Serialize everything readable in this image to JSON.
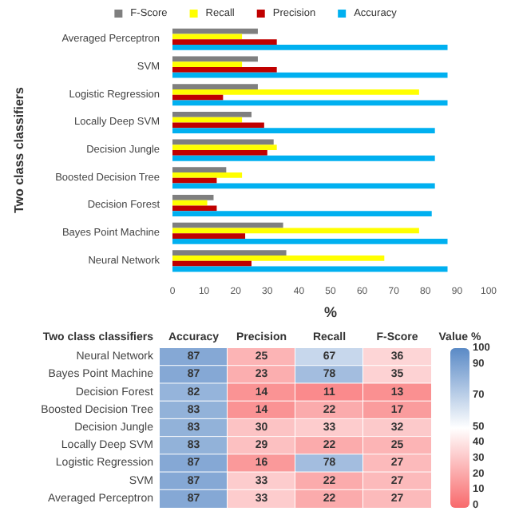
{
  "chart_data": [
    {
      "type": "bar",
      "orientation": "horizontal",
      "xlabel": "%",
      "ylabel": "Two class classifiers",
      "legend": "top",
      "categories": [
        "Averaged Perceptron",
        "SVM",
        "Logistic Regression",
        "Locally Deep SVM",
        "Decision Jungle",
        "Boosted Decision Tree",
        "Decision Forest",
        "Bayes Point Machine",
        "Neural Network"
      ],
      "series": [
        {
          "name": "F-Score",
          "color": "#7f7f7f",
          "values": [
            27,
            27,
            27,
            25,
            32,
            17,
            13,
            35,
            36
          ]
        },
        {
          "name": "Recall",
          "color": "#ffff00",
          "values": [
            22,
            22,
            78,
            22,
            33,
            22,
            11,
            78,
            67
          ]
        },
        {
          "name": "Precision",
          "color": "#c00000",
          "values": [
            33,
            33,
            16,
            29,
            30,
            14,
            14,
            23,
            25
          ]
        },
        {
          "name": "Accuracy",
          "color": "#00b0f0",
          "values": [
            87,
            87,
            87,
            83,
            83,
            83,
            82,
            87,
            87
          ]
        }
      ],
      "xlim": [
        0,
        100
      ],
      "xticks": [
        0,
        10,
        20,
        30,
        40,
        50,
        60,
        70,
        80,
        90,
        100
      ],
      "grid": false
    },
    {
      "type": "heatmap",
      "ylabel": "Two class classifiers",
      "categories": [
        "Accuracy",
        "Precision",
        "Recall",
        "F-Score"
      ],
      "y_categories": [
        "Neural Network",
        "Bayes Point Machine",
        "Decision Forest",
        "Boosted Decision Tree",
        "Decision Jungle",
        "Locally Deep SVM",
        "Logistic Regression",
        "SVM",
        "Averaged Perceptron"
      ],
      "cells": [
        [
          87,
          25,
          67,
          36
        ],
        [
          87,
          23,
          78,
          35
        ],
        [
          82,
          14,
          11,
          13
        ],
        [
          83,
          14,
          22,
          17
        ],
        [
          83,
          30,
          33,
          32
        ],
        [
          83,
          29,
          22,
          25
        ],
        [
          87,
          16,
          78,
          27
        ],
        [
          87,
          33,
          22,
          27
        ],
        [
          87,
          33,
          22,
          27
        ]
      ],
      "data_labels": true,
      "clabel": "Value %",
      "clim": [
        0,
        100
      ],
      "cticks": [
        100,
        90,
        70,
        50,
        40,
        30,
        20,
        10,
        0
      ]
    }
  ]
}
